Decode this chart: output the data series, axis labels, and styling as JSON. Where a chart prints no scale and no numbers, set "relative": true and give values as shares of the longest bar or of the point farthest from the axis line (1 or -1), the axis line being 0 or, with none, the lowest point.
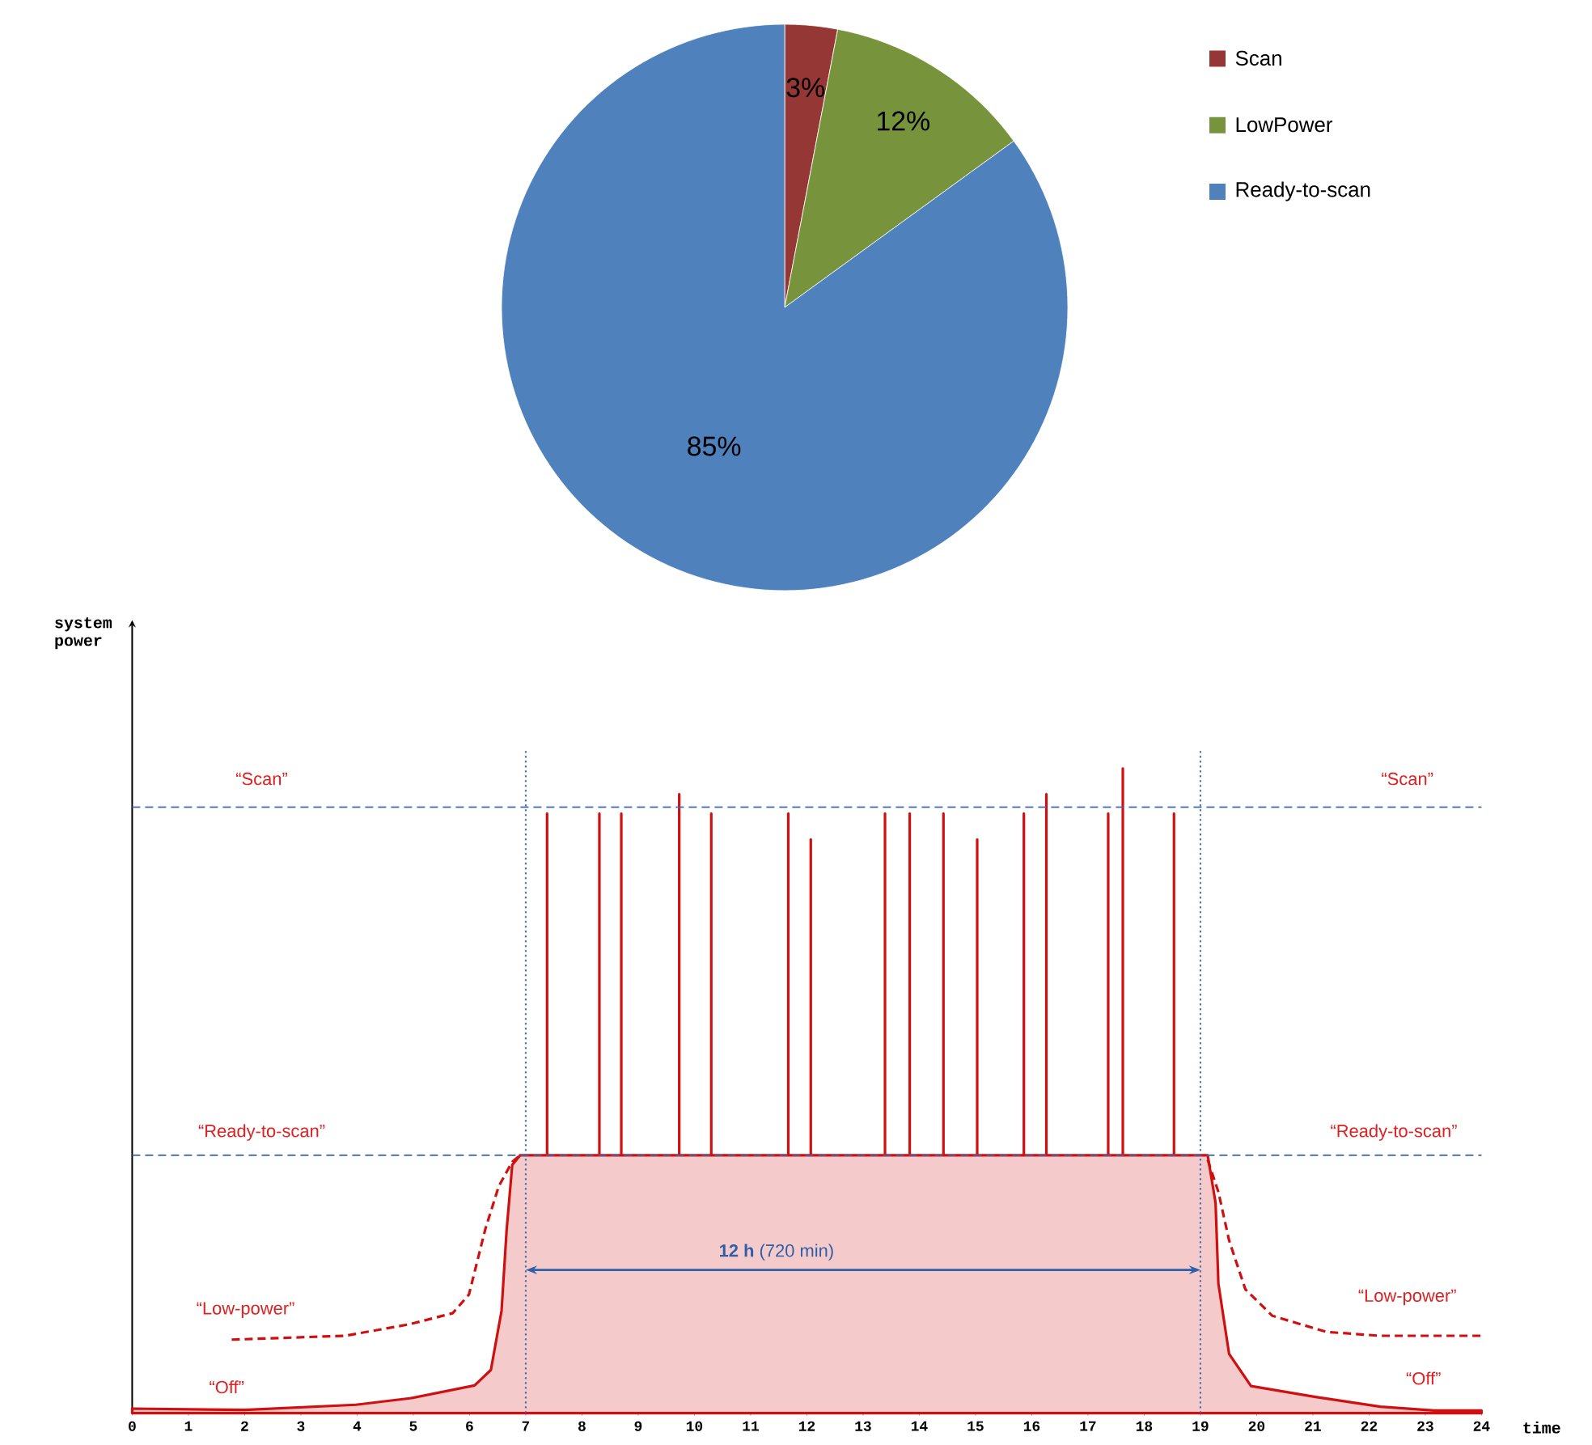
{
  "chart_data": [
    {
      "type": "pie",
      "categories": [
        "Scan",
        "LowPower",
        "Ready-to-scan"
      ],
      "values": [
        3,
        12,
        85
      ],
      "colors": [
        "#953735",
        "#77933c",
        "#4f81bd"
      ],
      "value_labels": [
        "3%",
        "12%",
        "85%"
      ],
      "legend": "top right"
    },
    {
      "type": "line",
      "relative": true,
      "xlabel": "time",
      "ylabel": "system power",
      "xlim": [
        0,
        24
      ],
      "xticks": [
        0,
        1,
        2,
        3,
        4,
        5,
        6,
        7,
        8,
        9,
        10,
        11,
        12,
        13,
        14,
        15,
        16,
        17,
        18,
        19,
        20,
        21,
        22,
        23,
        24
      ],
      "series": [
        {
          "type": "area",
          "color": "#d01010",
          "x": [
            0,
            2,
            3.98,
            4.94,
            6.09,
            6.38,
            6.57,
            6.66,
            6.76,
            6.9,
            7.38,
            7.38,
            7.38,
            8.31,
            8.31,
            8.31,
            8.7,
            8.7,
            8.7,
            9.73,
            9.73,
            9.73,
            10.3,
            10.3,
            10.3,
            11.67,
            11.67,
            11.67,
            12.07,
            12.07,
            12.07,
            13.39,
            13.39,
            13.39,
            13.83,
            13.83,
            13.83,
            14.43,
            14.43,
            14.43,
            15.03,
            15.03,
            15.03,
            15.86,
            15.86,
            15.86,
            16.26,
            16.26,
            16.26,
            17.36,
            17.36,
            17.36,
            17.62,
            17.62,
            17.62,
            18.53,
            18.53,
            18.53,
            19.13,
            19.27,
            19.32,
            19.51,
            19.9,
            21.05,
            22.2,
            23.16,
            24
          ],
          "values": [
            0.007,
            0.005,
            0.013,
            0.023,
            0.043,
            0.067,
            0.159,
            0.284,
            0.385,
            0.4,
            0.4,
            0.93,
            0.4,
            0.4,
            0.93,
            0.4,
            0.4,
            0.93,
            0.4,
            0.4,
            0.96,
            0.4,
            0.4,
            0.93,
            0.4,
            0.4,
            0.93,
            0.4,
            0.4,
            0.89,
            0.4,
            0.4,
            0.93,
            0.4,
            0.4,
            0.93,
            0.4,
            0.4,
            0.93,
            0.4,
            0.4,
            0.89,
            0.4,
            0.4,
            0.93,
            0.4,
            0.4,
            0.96,
            0.4,
            0.4,
            0.93,
            0.4,
            0.4,
            1.0,
            0.4,
            0.4,
            0.93,
            0.4,
            0.4,
            0.326,
            0.201,
            0.092,
            0.042,
            0.025,
            0.01,
            0.004,
            0.004
          ]
        },
        {
          "type": "line",
          "line_style": "dashed",
          "color": "#d01010",
          "x": [
            1.77,
            3.79,
            4.94,
            5.7,
            5.99,
            6.28,
            6.52,
            6.76,
            6.9,
            null,
            19.13,
            19.32,
            19.51,
            19.8,
            20.28,
            21.24,
            22.19,
            24.0
          ],
          "values": [
            0.114,
            0.12,
            0.138,
            0.155,
            0.184,
            0.285,
            0.352,
            0.39,
            0.4,
            null,
            0.393,
            0.343,
            0.268,
            0.192,
            0.151,
            0.126,
            0.12,
            0.12
          ]
        }
      ],
      "ref_lines": [
        {
          "axis": "y",
          "value": 0.94,
          "color": "#3a68b0",
          "line_style": "dashed"
        },
        {
          "axis": "y",
          "value": 0.4,
          "color": "#3a68b0",
          "line_style": "dashed"
        },
        {
          "axis": "x",
          "value": 7,
          "color": "#3a68b0",
          "line_style": "dotted"
        },
        {
          "axis": "x",
          "value": 19,
          "color": "#3a68b0",
          "line_style": "dotted"
        }
      ],
      "annotations": [
        "“Scan”",
        "“Scan”",
        "“Ready-to-scan”",
        "“Ready-to-scan”",
        "“Low-power”",
        "“Low-power”",
        "“Off”",
        "“Off”",
        "**12 h** (720 min)"
      ]
    }
  ]
}
